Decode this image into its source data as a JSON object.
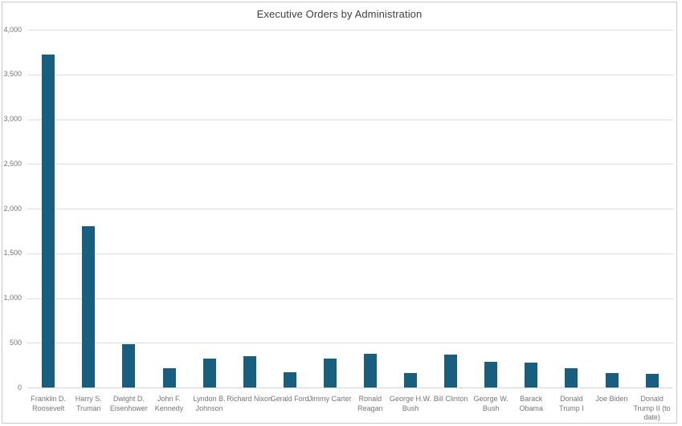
{
  "chart_data": {
    "type": "bar",
    "title": "Executive Orders by Administration",
    "xlabel": "",
    "ylabel": "",
    "ylim": [
      0,
      4000
    ],
    "ytick_step": 500,
    "ytick_labels": [
      "0",
      "500",
      "1,000",
      "1,500",
      "2,000",
      "2,500",
      "3,000",
      "3,500",
      "4,000"
    ],
    "grid": "horizontal",
    "legend": "none",
    "categories": [
      "Franklin D. Roosevelt",
      "Harry S. Truman",
      "Dwight D. Eisenhower",
      "John F. Kennedy",
      "Lyndon B. Johnson",
      "Richard Nixon",
      "Gerald Ford",
      "Jimmy Carter",
      "Ronald Reagan",
      "George H.W. Bush",
      "Bill Clinton",
      "George W. Bush",
      "Barack Obama",
      "Donald Trump I",
      "Joe Biden",
      "Donald Trump II (to date)"
    ],
    "category_label_lines": [
      [
        "Franklin D.",
        "Roosevelt"
      ],
      [
        "Harry S.",
        "Truman"
      ],
      [
        "Dwight D.",
        "Eisenhower"
      ],
      [
        "John F.",
        "Kennedy"
      ],
      [
        "Lyndon B.",
        "Johnson"
      ],
      [
        "Richard Nixon"
      ],
      [
        "Gerald Ford"
      ],
      [
        "Jimmy Carter"
      ],
      [
        "Ronald",
        "Reagan"
      ],
      [
        "George H.W.",
        "Bush"
      ],
      [
        "Bill Clinton"
      ],
      [
        "George W.",
        "Bush"
      ],
      [
        "Barack",
        "Obama"
      ],
      [
        "Donald",
        "Trump I"
      ],
      [
        "Joe Biden"
      ],
      [
        "Donald",
        "Trump II (to",
        "date)"
      ]
    ],
    "values": [
      3721,
      1800,
      484,
      214,
      325,
      346,
      169,
      320,
      381,
      166,
      364,
      291,
      276,
      220,
      162,
      150
    ]
  },
  "colors": {
    "bar": "#175e7f",
    "gridline": "#dddddd",
    "baseline": "#d4d4d4",
    "axis_text": "#757575",
    "title_text": "#404040",
    "frame_border": "#c9c9c9",
    "background": "#ffffff"
  }
}
